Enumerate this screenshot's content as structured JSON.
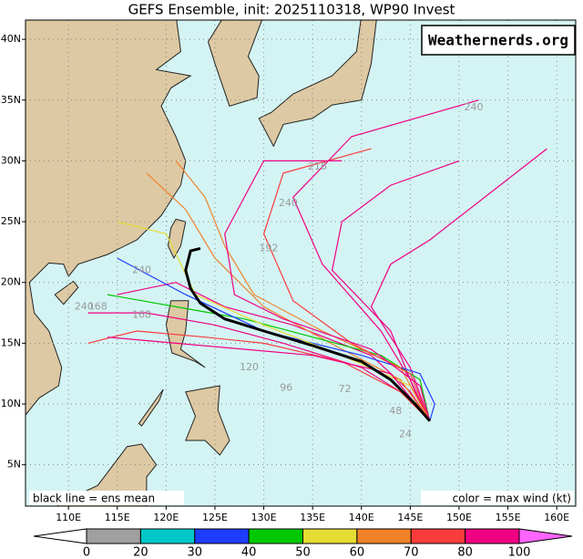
{
  "header": {
    "title": "GEFS Ensemble, init: 2025110318, WP90 Invest",
    "watermark": "Weathernerds.org"
  },
  "map": {
    "lon_ticks": [
      {
        "value": 110,
        "label": "110E"
      },
      {
        "value": 115,
        "label": "115E"
      },
      {
        "value": 120,
        "label": "120E"
      },
      {
        "value": 125,
        "label": "125E"
      },
      {
        "value": 130,
        "label": "130E"
      },
      {
        "value": 135,
        "label": "135E"
      },
      {
        "value": 140,
        "label": "140E"
      },
      {
        "value": 145,
        "label": "145E"
      },
      {
        "value": 150,
        "label": "150E"
      },
      {
        "value": 155,
        "label": "155E"
      },
      {
        "value": 160,
        "label": "160E"
      }
    ],
    "lat_ticks": [
      {
        "value": 5,
        "label": "5N"
      },
      {
        "value": 10,
        "label": "10N"
      },
      {
        "value": 15,
        "label": "15N"
      },
      {
        "value": 20,
        "label": "20N"
      },
      {
        "value": 25,
        "label": "25N"
      },
      {
        "value": 30,
        "label": "30N"
      },
      {
        "value": 35,
        "label": "35N"
      },
      {
        "value": 40,
        "label": "40N"
      }
    ],
    "hour_labels": [
      "240",
      "216",
      "240",
      "192",
      "168",
      "120",
      "96",
      "72",
      "48",
      "24",
      "240",
      "240",
      "168"
    ],
    "left_note": "black line = ens mean",
    "right_note": "color = max wind (kt)"
  },
  "colorbar": {
    "bounds": [
      0,
      20,
      30,
      40,
      50,
      60,
      70,
      80,
      100
    ],
    "colors": [
      "#a0a0a0",
      "#00c8c8",
      "#1e3cff",
      "#00c800",
      "#e6dc32",
      "#f08228",
      "#fa3c3c",
      "#f00082"
    ],
    "under_color": "#ffffff",
    "over_color": "#ff64ff"
  }
}
